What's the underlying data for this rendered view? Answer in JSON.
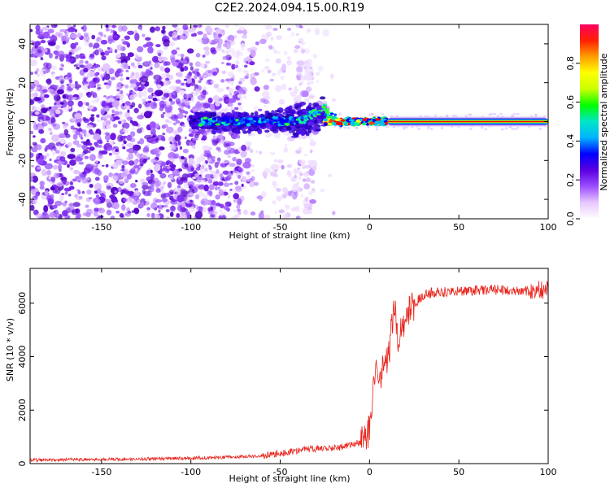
{
  "figure_title": "C2E2.2024.094.15.00.R19",
  "chart_data": [
    {
      "type": "heatmap",
      "title": "",
      "xlabel": "Height of straight line (km)",
      "ylabel": "Frequency (Hz)",
      "xlim": [
        -190,
        100
      ],
      "ylim": [
        -50,
        50
      ],
      "x_ticks": [
        -150,
        -100,
        -50,
        0,
        50,
        100
      ],
      "y_ticks": [
        -40,
        -20,
        0,
        20,
        40
      ],
      "colorbar": {
        "label": "Normalized spectral amplitude",
        "range": [
          0.0,
          1.0
        ],
        "ticks": [
          0.0,
          0.2,
          0.4,
          0.6,
          0.8
        ],
        "colormap": [
          "#ffffff",
          "#e8c8ff",
          "#9b4dff",
          "#5b00e0",
          "#0000ff",
          "#00b4ff",
          "#00e6c8",
          "#00ff00",
          "#c8ff00",
          "#ffff00",
          "#ffa000",
          "#ff2000",
          "#ff0060"
        ]
      },
      "features": {
        "noise_region_x": [
          -190,
          -25
        ],
        "signal_line_frequency": 0,
        "signal_onset_x": -100,
        "saturated_line_x": [
          10,
          100
        ]
      },
      "grid": false
    },
    {
      "type": "line",
      "title": "",
      "xlabel": "Height of straight line (km)",
      "ylabel": "SNR (10 * v/v)",
      "xlim": [
        -190,
        100
      ],
      "ylim": [
        0,
        7300
      ],
      "x_ticks": [
        -150,
        -100,
        -50,
        0,
        50,
        100
      ],
      "y_ticks": [
        0,
        2000,
        4000,
        6000
      ],
      "color": "#e8241c",
      "grid": false,
      "series": [
        {
          "x": [
            -190,
            -170,
            -150,
            -130,
            -110,
            -90,
            -70,
            -60,
            -50,
            -45,
            -40,
            -35,
            -30,
            -25,
            -20,
            -15,
            -10,
            -5,
            -2,
            0,
            2,
            4,
            6,
            8,
            10,
            12,
            14,
            16,
            18,
            20,
            22,
            25,
            28,
            30,
            35,
            40,
            50,
            60,
            70,
            80,
            90,
            95,
            100
          ],
          "y": [
            130,
            150,
            160,
            170,
            190,
            220,
            260,
            300,
            380,
            430,
            480,
            540,
            560,
            600,
            580,
            630,
            720,
            790,
            830,
            1250,
            2900,
            3400,
            3000,
            4200,
            3600,
            4800,
            5700,
            4700,
            5200,
            5400,
            5800,
            6000,
            6150,
            6300,
            6400,
            6420,
            6450,
            6480,
            6500,
            6480,
            6450,
            6500,
            6480
          ]
        }
      ]
    }
  ]
}
